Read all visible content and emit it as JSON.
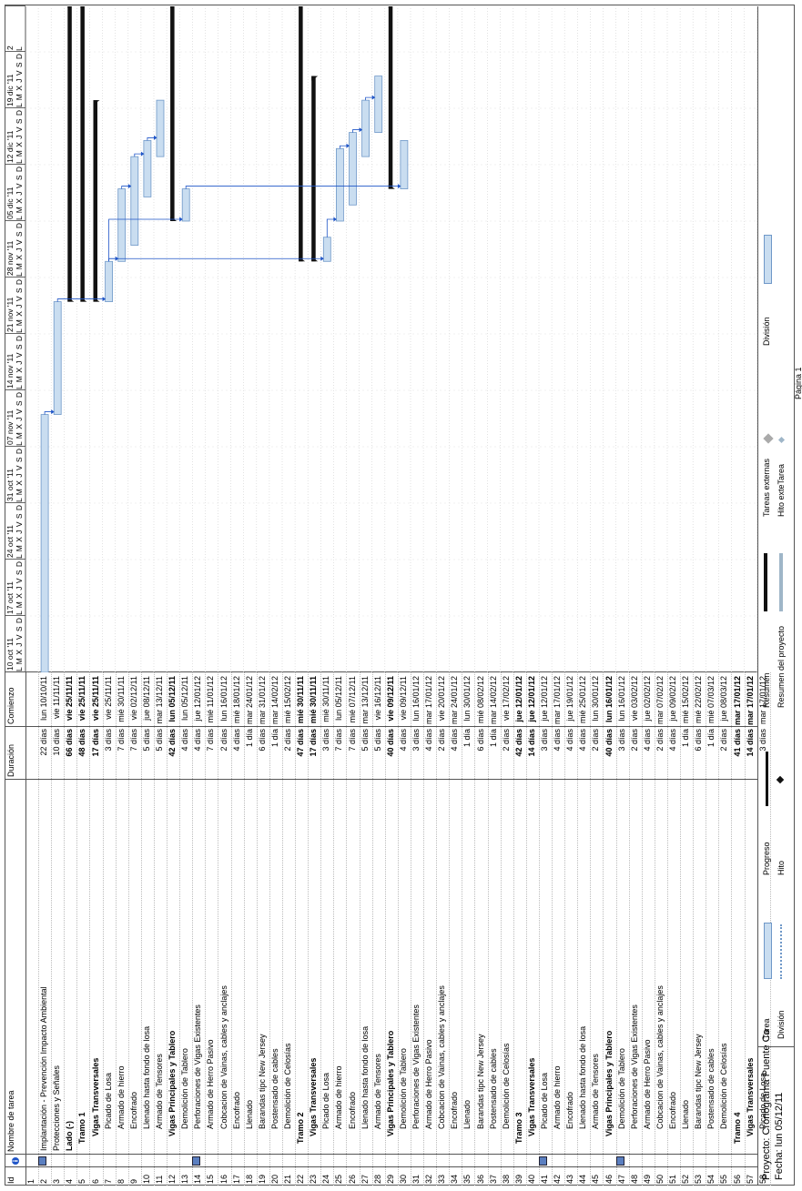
{
  "headers": {
    "id": "Id",
    "name": "Nombre de tarea",
    "duration": "Duración",
    "start": "Comienzo"
  },
  "weeks": [
    {
      "label": "10 oct '11",
      "days": "L M X J V S D"
    },
    {
      "label": "17 oct '11",
      "days": "L M X J V S D"
    },
    {
      "label": "24 oct '11",
      "days": "L M X J V S D"
    },
    {
      "label": "31 oct '11",
      "days": "L M X J V S D"
    },
    {
      "label": "07 nov '11",
      "days": "L M X J V S D"
    },
    {
      "label": "14 nov '11",
      "days": "L M X J V S D"
    },
    {
      "label": "21 nov '11",
      "days": "L M X J V S D"
    },
    {
      "label": "28 nov '11",
      "days": "L M X J V S D"
    },
    {
      "label": "05 dic '11",
      "days": "L M X J V S D"
    },
    {
      "label": "12 dic '11",
      "days": "L M X J V S D"
    },
    {
      "label": "19 dic '11",
      "days": "L M X J V S D"
    },
    {
      "label": "2",
      "days": "L"
    }
  ],
  "rows": [
    {
      "id": "1",
      "name": "",
      "dur": "",
      "start": "",
      "bold": false,
      "indent": 0,
      "note": false
    },
    {
      "id": "2",
      "name": "Implantación - Prevención Impacto Ambiental",
      "dur": "22 días",
      "start": "lun 10/10/11",
      "bold": false,
      "indent": 0,
      "note": true
    },
    {
      "id": "3",
      "name": "Protecciones y Señales",
      "dur": "10 días",
      "start": "vie 11/11/11",
      "bold": false,
      "indent": 0,
      "note": false
    },
    {
      "id": "4",
      "name": "Lado (-)",
      "dur": "66 días",
      "start": "vie 25/11/11",
      "bold": true,
      "indent": 0,
      "note": false
    },
    {
      "id": "5",
      "name": "Tramo 1",
      "dur": "48 días",
      "start": "vie 25/11/11",
      "bold": true,
      "indent": 1,
      "note": false
    },
    {
      "id": "6",
      "name": "Vigas Transversales",
      "dur": "17 días",
      "start": "vie 25/11/11",
      "bold": true,
      "indent": 2,
      "note": false
    },
    {
      "id": "7",
      "name": "Picado de Losa",
      "dur": "3 días",
      "start": "vie 25/11/11",
      "bold": false,
      "indent": 3,
      "note": false
    },
    {
      "id": "8",
      "name": "Armado de hierro",
      "dur": "7 días",
      "start": "mié 30/11/11",
      "bold": false,
      "indent": 3,
      "note": false
    },
    {
      "id": "9",
      "name": "Encofrado",
      "dur": "7 días",
      "start": "vie 02/12/11",
      "bold": false,
      "indent": 3,
      "note": false
    },
    {
      "id": "10",
      "name": "Llenado hasta fondo de losa",
      "dur": "5 días",
      "start": "jue 08/12/11",
      "bold": false,
      "indent": 3,
      "note": false
    },
    {
      "id": "11",
      "name": "Armado de Tensores",
      "dur": "5 días",
      "start": "mar 13/12/11",
      "bold": false,
      "indent": 3,
      "note": false
    },
    {
      "id": "12",
      "name": "Vigas Principales y Tablero",
      "dur": "42 días",
      "start": "lun 05/12/11",
      "bold": true,
      "indent": 2,
      "note": false
    },
    {
      "id": "13",
      "name": "Demolición de Tablero",
      "dur": "4 días",
      "start": "lun 05/12/11",
      "bold": false,
      "indent": 3,
      "note": false
    },
    {
      "id": "14",
      "name": "Perforaciones de Vigas Existentes",
      "dur": "4 días",
      "start": "jue 12/01/12",
      "bold": false,
      "indent": 3,
      "note": true
    },
    {
      "id": "15",
      "name": "Armado de Herro Pasivo",
      "dur": "7 días",
      "start": "mié 11/01/12",
      "bold": false,
      "indent": 3,
      "note": false
    },
    {
      "id": "16",
      "name": "Cobcacion de Vainas, cables y anclajes",
      "dur": "2 días",
      "start": "lun 16/01/12",
      "bold": false,
      "indent": 3,
      "note": false
    },
    {
      "id": "17",
      "name": "Encofrado",
      "dur": "4 días",
      "start": "mié 18/01/12",
      "bold": false,
      "indent": 3,
      "note": false
    },
    {
      "id": "18",
      "name": "Llenado",
      "dur": "1 día",
      "start": "mar 24/01/12",
      "bold": false,
      "indent": 3,
      "note": false
    },
    {
      "id": "19",
      "name": "Barandas tipc New Jersey",
      "dur": "6 días",
      "start": "mar 31/01/12",
      "bold": false,
      "indent": 3,
      "note": false
    },
    {
      "id": "20",
      "name": "Postensado de cables",
      "dur": "1 día",
      "start": "mar 14/02/12",
      "bold": false,
      "indent": 3,
      "note": false
    },
    {
      "id": "21",
      "name": "Demolición de Celosías",
      "dur": "2 días",
      "start": "mié 15/02/12",
      "bold": false,
      "indent": 3,
      "note": false
    },
    {
      "id": "22",
      "name": "Tramo 2",
      "dur": "47 días",
      "start": "mié 30/11/11",
      "bold": true,
      "indent": 1,
      "note": false
    },
    {
      "id": "23",
      "name": "Vigas Transversales",
      "dur": "17 días",
      "start": "mié 30/11/11",
      "bold": true,
      "indent": 2,
      "note": false
    },
    {
      "id": "24",
      "name": "Picado de Losa",
      "dur": "3 días",
      "start": "mié 30/11/11",
      "bold": false,
      "indent": 3,
      "note": false
    },
    {
      "id": "25",
      "name": "Armado de hierro",
      "dur": "7 días",
      "start": "lun 05/12/11",
      "bold": false,
      "indent": 3,
      "note": false
    },
    {
      "id": "26",
      "name": "Encofrado",
      "dur": "7 días",
      "start": "mié 07/12/11",
      "bold": false,
      "indent": 3,
      "note": false
    },
    {
      "id": "27",
      "name": "Llenado hasta fondo de losa",
      "dur": "5 días",
      "start": "mar 13/12/11",
      "bold": false,
      "indent": 3,
      "note": false
    },
    {
      "id": "28",
      "name": "Armado de Tensores",
      "dur": "5 días",
      "start": "vie 16/12/11",
      "bold": false,
      "indent": 3,
      "note": false
    },
    {
      "id": "29",
      "name": "Vigas Principales y Tablero",
      "dur": "40 días",
      "start": "vie 09/12/11",
      "bold": true,
      "indent": 2,
      "note": false
    },
    {
      "id": "30",
      "name": "Demolición de Tablero",
      "dur": "4 días",
      "start": "vie 09/12/11",
      "bold": false,
      "indent": 3,
      "note": false
    },
    {
      "id": "31",
      "name": "Perforaciones de Vigas Existentes",
      "dur": "3 días",
      "start": "lun 16/01/12",
      "bold": false,
      "indent": 3,
      "note": false
    },
    {
      "id": "32",
      "name": "Armado de Herro Pasivo",
      "dur": "4 días",
      "start": "mar 17/01/12",
      "bold": false,
      "indent": 3,
      "note": false
    },
    {
      "id": "33",
      "name": "Cobcacion de Vainas, cables y anclajes",
      "dur": "2 días",
      "start": "vie 20/01/12",
      "bold": false,
      "indent": 3,
      "note": false
    },
    {
      "id": "34",
      "name": "Encofrado",
      "dur": "4 días",
      "start": "mar 24/01/12",
      "bold": false,
      "indent": 3,
      "note": false
    },
    {
      "id": "35",
      "name": "Llenado",
      "dur": "1 día",
      "start": "lun 30/01/12",
      "bold": false,
      "indent": 3,
      "note": false
    },
    {
      "id": "36",
      "name": "Barandas tipc New Jersey",
      "dur": "6 días",
      "start": "mié 08/02/12",
      "bold": false,
      "indent": 3,
      "note": false
    },
    {
      "id": "37",
      "name": "Postensado de cables",
      "dur": "1 día",
      "start": "mar 14/02/12",
      "bold": false,
      "indent": 3,
      "note": false
    },
    {
      "id": "38",
      "name": "Demolición de Celosías",
      "dur": "2 días",
      "start": "vie 17/02/12",
      "bold": false,
      "indent": 3,
      "note": false
    },
    {
      "id": "39",
      "name": "Tramo 3",
      "dur": "42 días",
      "start": "jue 12/01/12",
      "bold": true,
      "indent": 1,
      "note": false
    },
    {
      "id": "40",
      "name": "Vigas Transversales",
      "dur": "14 días",
      "start": "jue 12/01/12",
      "bold": true,
      "indent": 2,
      "note": false
    },
    {
      "id": "41",
      "name": "Picado de Losa",
      "dur": "3 días",
      "start": "jue 12/01/12",
      "bold": false,
      "indent": 3,
      "note": true
    },
    {
      "id": "42",
      "name": "Armado de hierro",
      "dur": "4 días",
      "start": "mar 17/01/12",
      "bold": false,
      "indent": 3,
      "note": false
    },
    {
      "id": "43",
      "name": "Encofrado",
      "dur": "4 días",
      "start": "jue 19/01/12",
      "bold": false,
      "indent": 3,
      "note": false
    },
    {
      "id": "44",
      "name": "Llenado hasta fondo de losa",
      "dur": "4 días",
      "start": "mié 25/01/12",
      "bold": false,
      "indent": 3,
      "note": false
    },
    {
      "id": "45",
      "name": "Armado de Tensores",
      "dur": "2 días",
      "start": "lun 30/01/12",
      "bold": false,
      "indent": 3,
      "note": false
    },
    {
      "id": "46",
      "name": "Vigas Principales y Tablero",
      "dur": "40 días",
      "start": "lun 16/01/12",
      "bold": true,
      "indent": 2,
      "note": false
    },
    {
      "id": "47",
      "name": "Demolición de Tablero",
      "dur": "3 días",
      "start": "lun 16/01/12",
      "bold": false,
      "indent": 3,
      "note": true
    },
    {
      "id": "48",
      "name": "Perforaciones de Vigas Existentes",
      "dur": "2 días",
      "start": "vie 03/02/12",
      "bold": false,
      "indent": 3,
      "note": false
    },
    {
      "id": "49",
      "name": "Armado de Herro Pasivo",
      "dur": "4 días",
      "start": "jue 02/02/12",
      "bold": false,
      "indent": 3,
      "note": false
    },
    {
      "id": "50",
      "name": "Cobcacion de Vainas, cables y anclajes",
      "dur": "2 días",
      "start": "mar 07/02/12",
      "bold": false,
      "indent": 3,
      "note": false
    },
    {
      "id": "51",
      "name": "Encofrado",
      "dur": "4 días",
      "start": "jue 09/02/12",
      "bold": false,
      "indent": 3,
      "note": false
    },
    {
      "id": "52",
      "name": "Llenado",
      "dur": "1 día",
      "start": "mié 15/02/12",
      "bold": false,
      "indent": 3,
      "note": false
    },
    {
      "id": "53",
      "name": "Barandas tipc New Jersey",
      "dur": "6 días",
      "start": "mié 22/02/12",
      "bold": false,
      "indent": 3,
      "note": false
    },
    {
      "id": "54",
      "name": "Postensado de cables",
      "dur": "1 día",
      "start": "mié 07/03/12",
      "bold": false,
      "indent": 3,
      "note": false
    },
    {
      "id": "55",
      "name": "Demolición de Celosías",
      "dur": "2 días",
      "start": "jue 08/03/12",
      "bold": false,
      "indent": 3,
      "note": false
    },
    {
      "id": "56",
      "name": "Tramo 4",
      "dur": "41 días",
      "start": "mar 17/01/12",
      "bold": true,
      "indent": 1,
      "note": false
    },
    {
      "id": "57",
      "name": "Vigas Transversales",
      "dur": "14 días",
      "start": "mar 17/01/12",
      "bold": true,
      "indent": 2,
      "note": false
    },
    {
      "id": "58",
      "name": "Picado de Losa",
      "dur": "3 días",
      "start": "mar 17/01/12",
      "bold": false,
      "indent": 3,
      "note": false
    }
  ],
  "legend": {
    "project": "Proyecto: Cronograma Puente Co",
    "date": "Fecha: lun 05/12/11",
    "items": [
      {
        "label": "Tarea"
      },
      {
        "label": "División"
      },
      {
        "label": "Progreso"
      },
      {
        "label": "Hito"
      },
      {
        "label": "Resumen"
      },
      {
        "label": "Resumen del proyecto"
      },
      {
        "label": "Tareas externas"
      },
      {
        "label": "Hito exteTarea"
      },
      {
        "label": "División"
      }
    ]
  },
  "page_label": "Página 1",
  "colors": {
    "task": "#c9ddf0",
    "task_border": "#6f98c8",
    "link": "#1f55c8",
    "summary": "#111111"
  },
  "chart_data": {
    "type": "gantt",
    "start_date": "2011-10-10",
    "tasks": [
      {
        "row": 2,
        "start": "2011-10-10",
        "end": "2011-11-10",
        "kind": "task"
      },
      {
        "row": 3,
        "start": "2011-11-11",
        "end": "2011-11-24",
        "kind": "task"
      },
      {
        "row": 4,
        "start": "2011-11-25",
        "end": "2011-12-31",
        "kind": "summary"
      },
      {
        "row": 5,
        "start": "2011-11-25",
        "end": "2011-12-31",
        "kind": "summary"
      },
      {
        "row": 6,
        "start": "2011-11-25",
        "end": "2011-12-19",
        "kind": "summary"
      },
      {
        "row": 7,
        "start": "2011-11-25",
        "end": "2011-11-29",
        "kind": "task"
      },
      {
        "row": 8,
        "start": "2011-11-30",
        "end": "2011-12-08",
        "kind": "task"
      },
      {
        "row": 9,
        "start": "2011-12-02",
        "end": "2011-12-12",
        "kind": "task"
      },
      {
        "row": 10,
        "start": "2011-12-08",
        "end": "2011-12-14",
        "kind": "task"
      },
      {
        "row": 11,
        "start": "2011-12-13",
        "end": "2011-12-19",
        "kind": "task"
      },
      {
        "row": 12,
        "start": "2011-12-05",
        "end": "2011-12-31",
        "kind": "summary"
      },
      {
        "row": 13,
        "start": "2011-12-05",
        "end": "2011-12-08",
        "kind": "task"
      },
      {
        "row": 22,
        "start": "2011-11-30",
        "end": "2011-12-31",
        "kind": "summary"
      },
      {
        "row": 23,
        "start": "2011-11-30",
        "end": "2011-12-22",
        "kind": "summary"
      },
      {
        "row": 24,
        "start": "2011-11-30",
        "end": "2011-12-02",
        "kind": "task"
      },
      {
        "row": 25,
        "start": "2011-12-05",
        "end": "2011-12-13",
        "kind": "task"
      },
      {
        "row": 26,
        "start": "2011-12-07",
        "end": "2011-12-15",
        "kind": "task"
      },
      {
        "row": 27,
        "start": "2011-12-13",
        "end": "2011-12-19",
        "kind": "task"
      },
      {
        "row": 28,
        "start": "2011-12-16",
        "end": "2011-12-22",
        "kind": "task"
      },
      {
        "row": 29,
        "start": "2011-12-09",
        "end": "2011-12-31",
        "kind": "summary"
      },
      {
        "row": 30,
        "start": "2011-12-09",
        "end": "2011-12-14",
        "kind": "task"
      }
    ]
  }
}
